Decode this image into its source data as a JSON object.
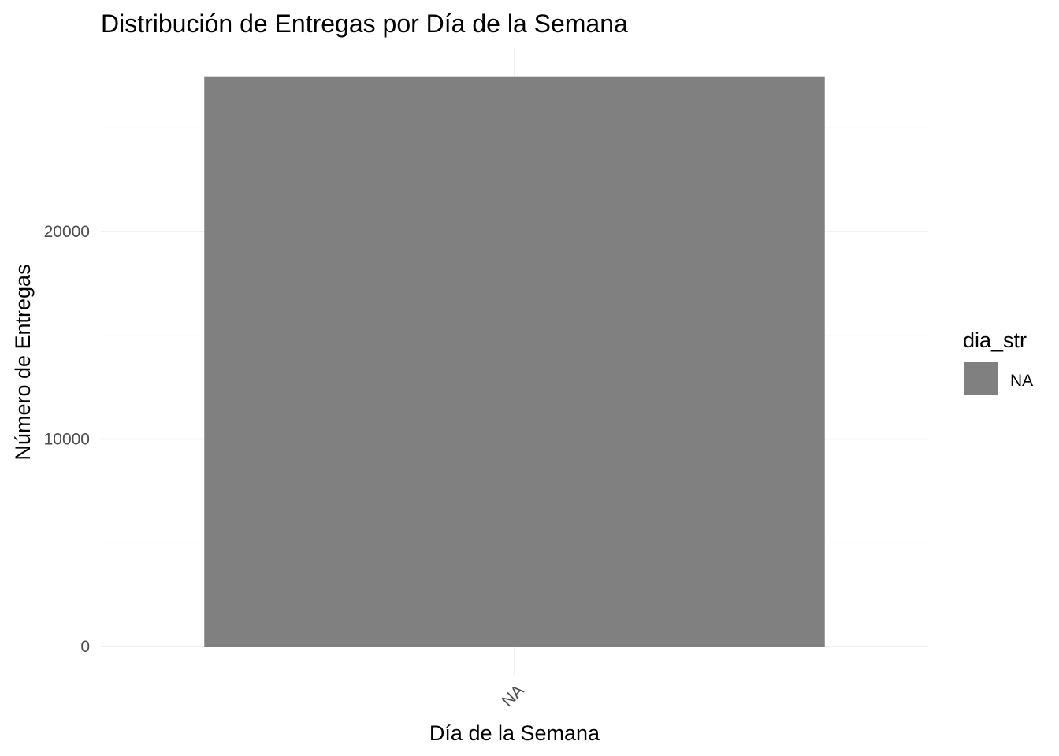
{
  "chart_data": {
    "type": "bar",
    "title": "Distribución de Entregas por Día de la Semana",
    "xlabel": "Día de la Semana",
    "ylabel": "Número de Entregas",
    "categories": [
      "NA"
    ],
    "values": [
      27450
    ],
    "ylim": [
      0,
      28000
    ],
    "y_ticks": [
      0,
      10000,
      20000
    ],
    "y_tick_labels": [
      "0",
      "10000",
      "20000"
    ],
    "y_minor_ticks": [
      5000,
      15000,
      25000
    ],
    "grid": true,
    "legend": {
      "title": "dia_str",
      "placement": "right",
      "entries": [
        {
          "label": "NA",
          "color": "#808080"
        }
      ]
    },
    "colors": {
      "bar": "#808080"
    }
  }
}
